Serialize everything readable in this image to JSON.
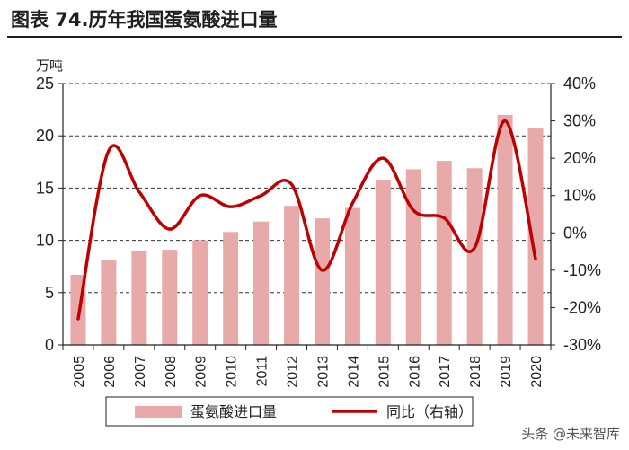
{
  "title": "图表 74.历年我国蛋氨酸进口量",
  "watermark": "头条 @未来智库",
  "chart_data": {
    "type": "bar+line",
    "categories": [
      "2005",
      "2006",
      "2007",
      "2008",
      "2009",
      "2010",
      "2011",
      "2012",
      "2013",
      "2014",
      "2015",
      "2016",
      "2017",
      "2018",
      "2019",
      "2020"
    ],
    "series": [
      {
        "name": "蛋氨酸进口量",
        "type": "bar",
        "axis": "left",
        "color": "#e8a9a9",
        "values": [
          6.7,
          8.1,
          9.0,
          9.1,
          10.0,
          10.8,
          11.8,
          13.3,
          12.1,
          13.1,
          15.8,
          16.8,
          17.6,
          16.9,
          22.0,
          20.7
        ]
      },
      {
        "name": "同比（右轴）",
        "type": "line",
        "axis": "right",
        "color": "#c00000",
        "values": [
          -23,
          22,
          11,
          1,
          10,
          7,
          10,
          13,
          -10,
          8,
          20,
          6,
          4,
          -4,
          30,
          -7
        ]
      }
    ],
    "y_left": {
      "unit": "万吨",
      "range": [
        0,
        25
      ],
      "ticks": [
        0,
        5,
        10,
        15,
        20,
        25
      ]
    },
    "y_right": {
      "range": [
        -30,
        40
      ],
      "ticks": [
        "-30%",
        "-20%",
        "-10%",
        "0%",
        "10%",
        "20%",
        "30%",
        "40%"
      ]
    },
    "grid": true,
    "legend_position": "bottom"
  }
}
